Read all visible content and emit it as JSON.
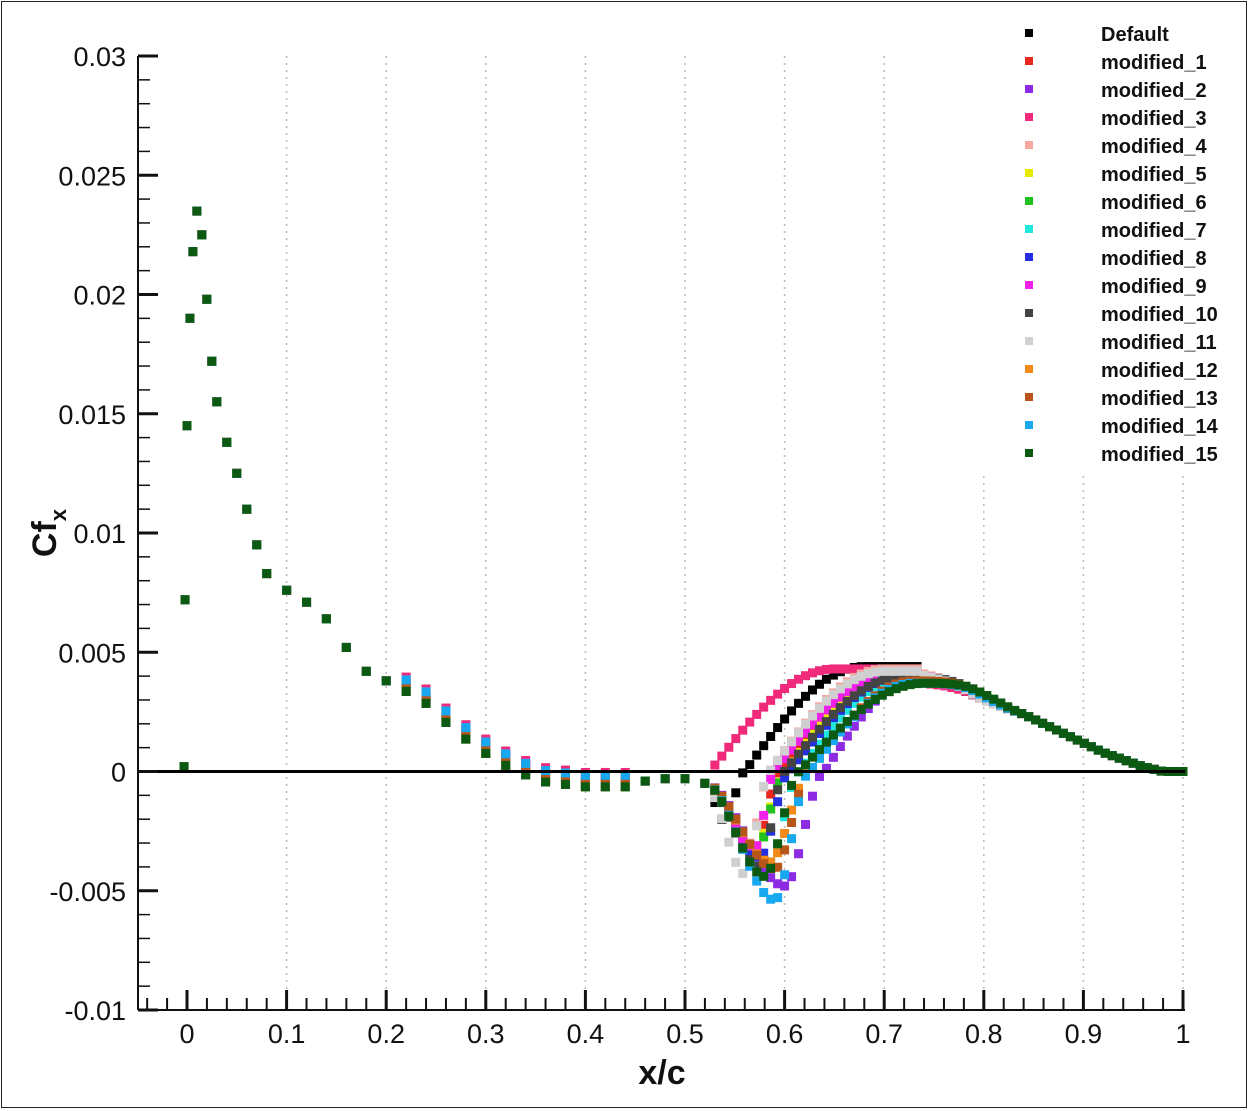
{
  "chart_data": {
    "type": "scatter",
    "xlabel": "x/c",
    "ylabel_main": "Cf",
    "ylabel_sub": "x",
    "xlim": [
      -0.05,
      1.0
    ],
    "ylim": [
      -0.01,
      0.03
    ],
    "x_ticks": [
      0,
      0.1,
      0.2,
      0.3,
      0.4,
      0.5,
      0.6,
      0.7,
      0.8,
      0.9,
      1.0
    ],
    "x_tick_labels": [
      "0",
      "0.1",
      "0.2",
      "0.3",
      "0.4",
      "0.5",
      "0.6",
      "0.7",
      "0.8",
      "0.9",
      "1"
    ],
    "y_ticks": [
      -0.01,
      -0.005,
      0,
      0.005,
      0.01,
      0.015,
      0.02,
      0.025,
      0.03
    ],
    "y_tick_labels": [
      "-0.01",
      "-0.005",
      "0",
      "0.005",
      "0.01",
      "0.015",
      "0.02",
      "0.025",
      "0.03"
    ],
    "grid": "vertical dotted lines at major x ticks",
    "zero_line": true,
    "legend_position": "top-right",
    "base_curve": {
      "x": [
        -0.003,
        -0.002,
        0.0,
        0.003,
        0.006,
        0.01,
        0.015,
        0.02,
        0.025,
        0.03,
        0.04,
        0.05,
        0.06,
        0.07,
        0.08,
        0.1,
        0.12,
        0.14,
        0.16,
        0.18,
        0.2,
        0.22,
        0.24,
        0.26,
        0.28,
        0.3,
        0.32,
        0.34,
        0.36,
        0.38,
        0.4,
        0.42,
        0.44,
        0.46,
        0.48,
        0.5,
        0.52
      ],
      "y": [
        0.0002,
        0.0072,
        0.0145,
        0.019,
        0.0218,
        0.0235,
        0.0225,
        0.0198,
        0.0172,
        0.0155,
        0.0138,
        0.0125,
        0.011,
        0.0095,
        0.0083,
        0.0076,
        0.0071,
        0.0064,
        0.0052,
        0.0042,
        0.0038,
        0.0036,
        0.0031,
        0.0023,
        0.0016,
        0.001,
        0.0005,
        0.0001,
        -0.0002,
        -0.0003,
        -0.0004,
        -0.0004,
        -0.0004,
        -0.0004,
        -0.0003,
        -0.0003,
        -0.0005
      ]
    },
    "tail_curve": {
      "x": [
        0.74,
        0.76,
        0.78,
        0.8,
        0.82,
        0.84,
        0.86,
        0.88,
        0.9,
        0.92,
        0.94,
        0.96,
        0.98,
        1.0
      ],
      "y": [
        0.0037,
        0.0036,
        0.0034,
        0.003,
        0.0027,
        0.0024,
        0.002,
        0.0016,
        0.0012,
        0.0008,
        0.0005,
        0.0002,
        0.0,
        0.0
      ]
    },
    "series": [
      {
        "name": "Default",
        "color": "#000000",
        "x_min": 0.54,
        "y_min": -0.0021,
        "x_zero": 0.56,
        "x_peak": 0.68,
        "y_peak": 0.0044
      },
      {
        "name": "modified_1",
        "color": "#e8281e",
        "x_min": 0.57,
        "y_min": -0.0032,
        "x_zero": 0.595,
        "x_peak": 0.71,
        "y_peak": 0.0041
      },
      {
        "name": "modified_2",
        "color": "#8c2be2",
        "x_min": 0.6,
        "y_min": -0.0048,
        "x_zero": 0.64,
        "x_peak": 0.73,
        "y_peak": 0.0038
      },
      {
        "name": "modified_3",
        "color": "#f02a7a",
        "x_min": 0.52,
        "y_min": -0.0004,
        "x_zero": 0.525,
        "x_peak": 0.65,
        "y_peak": 0.0043
      },
      {
        "name": "modified_4",
        "color": "#f6a8a0",
        "x_min": 0.565,
        "y_min": -0.003,
        "x_zero": 0.585,
        "x_peak": 0.7,
        "y_peak": 0.0043
      },
      {
        "name": "modified_5",
        "color": "#e8e800",
        "x_min": 0.57,
        "y_min": -0.0033,
        "x_zero": 0.6,
        "x_peak": 0.71,
        "y_peak": 0.004
      },
      {
        "name": "modified_6",
        "color": "#22c21e",
        "x_min": 0.57,
        "y_min": -0.0035,
        "x_zero": 0.6,
        "x_peak": 0.72,
        "y_peak": 0.0039
      },
      {
        "name": "modified_7",
        "color": "#20e6e0",
        "x_min": 0.585,
        "y_min": -0.0038,
        "x_zero": 0.615,
        "x_peak": 0.72,
        "y_peak": 0.0039
      },
      {
        "name": "modified_8",
        "color": "#2430e0",
        "x_min": 0.575,
        "y_min": -0.0036,
        "x_zero": 0.605,
        "x_peak": 0.72,
        "y_peak": 0.004
      },
      {
        "name": "modified_9",
        "color": "#f020e8",
        "x_min": 0.57,
        "y_min": -0.0032,
        "x_zero": 0.59,
        "x_peak": 0.71,
        "y_peak": 0.0041
      },
      {
        "name": "modified_10",
        "color": "#444444",
        "x_min": 0.575,
        "y_min": -0.004,
        "x_zero": 0.6,
        "x_peak": 0.72,
        "y_peak": 0.004
      },
      {
        "name": "modified_11",
        "color": "#d0d0d0",
        "x_min": 0.56,
        "y_min": -0.0043,
        "x_zero": 0.585,
        "x_peak": 0.7,
        "y_peak": 0.0042
      },
      {
        "name": "modified_12",
        "color": "#f28a1a",
        "x_min": 0.585,
        "y_min": -0.0038,
        "x_zero": 0.625,
        "x_peak": 0.73,
        "y_peak": 0.0038
      },
      {
        "name": "modified_13",
        "color": "#b8561a",
        "x_min": 0.59,
        "y_min": -0.0041,
        "x_zero": 0.625,
        "x_peak": 0.73,
        "y_peak": 0.0038
      },
      {
        "name": "modified_14",
        "color": "#18a8f0",
        "x_min": 0.59,
        "y_min": -0.0054,
        "x_zero": 0.625,
        "x_peak": 0.73,
        "y_peak": 0.0037
      },
      {
        "name": "modified_15",
        "color": "#0c5a12",
        "x_min": 0.58,
        "y_min": -0.0044,
        "x_zero": 0.615,
        "x_peak": 0.74,
        "y_peak": 0.0037
      }
    ]
  }
}
